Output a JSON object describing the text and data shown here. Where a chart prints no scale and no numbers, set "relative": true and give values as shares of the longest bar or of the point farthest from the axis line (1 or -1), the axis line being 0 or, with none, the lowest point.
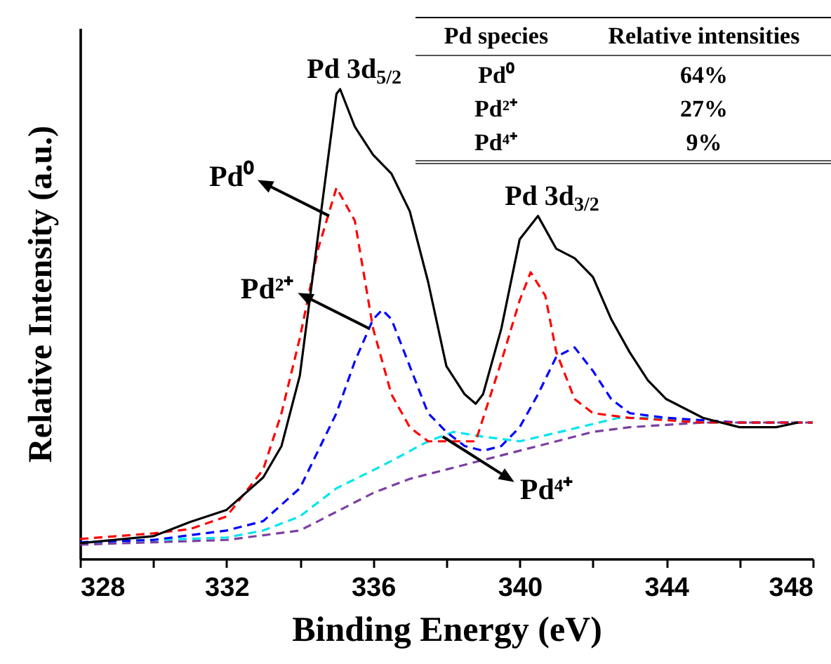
{
  "chart_data": {
    "type": "line",
    "relative": true,
    "xlabel": "Binding Energy (eV)",
    "ylabel": "Relative Intensity (a.u.)",
    "xlim": [
      328,
      348
    ],
    "xticks": [
      328,
      {
        "value": 330,
        "label": null
      },
      332,
      {
        "value": 334,
        "label": null
      },
      336,
      {
        "value": 338,
        "label": null
      },
      340,
      {
        "value": 342,
        "label": null
      },
      344,
      {
        "value": 346,
        "label": null
      },
      348
    ],
    "series": [
      {
        "color": "#7b3fa0",
        "line_style": "dashed",
        "x": [
          328,
          330,
          332,
          333,
          334,
          335,
          336,
          337,
          338,
          339,
          340,
          341,
          342,
          343,
          344,
          345,
          346,
          347,
          348
        ],
        "values": [
          0.03,
          0.035,
          0.04,
          0.05,
          0.06,
          0.1,
          0.14,
          0.17,
          0.19,
          0.21,
          0.23,
          0.25,
          0.27,
          0.28,
          0.285,
          0.29,
          0.29,
          0.29,
          0.29
        ]
      },
      {
        "color": "#00e5ee",
        "line_style": "dashed",
        "x": [
          328,
          330,
          332,
          333,
          334,
          334.5,
          335,
          336.3,
          337.5,
          338.2,
          339,
          340,
          341.1,
          342.7,
          343.7,
          345,
          346,
          347,
          348
        ],
        "values": [
          0.035,
          0.04,
          0.045,
          0.06,
          0.09,
          0.12,
          0.15,
          0.2,
          0.25,
          0.27,
          0.26,
          0.25,
          0.27,
          0.3,
          0.3,
          0.29,
          0.29,
          0.29,
          0.29
        ]
      },
      {
        "color": "#0000ff",
        "line_style": "dashed",
        "x": [
          328,
          330,
          332,
          333,
          334,
          334.5,
          335,
          335.5,
          336,
          336.25,
          336.5,
          337,
          337.5,
          338,
          338.5,
          339,
          339.5,
          340,
          340.5,
          341,
          341.5,
          342,
          342.5,
          343,
          344,
          346,
          348
        ],
        "values": [
          0.035,
          0.04,
          0.06,
          0.08,
          0.15,
          0.23,
          0.31,
          0.42,
          0.51,
          0.53,
          0.51,
          0.41,
          0.31,
          0.27,
          0.24,
          0.23,
          0.24,
          0.28,
          0.35,
          0.43,
          0.45,
          0.4,
          0.34,
          0.31,
          0.3,
          0.29,
          0.29
        ]
      },
      {
        "color": "#ff0000",
        "line_style": "dashed",
        "x": [
          328,
          330,
          331,
          332,
          333,
          333.5,
          334,
          334.5,
          335,
          335.5,
          336,
          336.5,
          337,
          337.5,
          338,
          338.8,
          339.5,
          340,
          340.3,
          340.7,
          341,
          341.5,
          342,
          343,
          345,
          348
        ],
        "values": [
          0.042,
          0.054,
          0.063,
          0.09,
          0.19,
          0.31,
          0.47,
          0.66,
          0.79,
          0.72,
          0.49,
          0.35,
          0.28,
          0.25,
          0.25,
          0.25,
          0.42,
          0.55,
          0.61,
          0.56,
          0.44,
          0.34,
          0.31,
          0.3,
          0.29,
          0.29
        ]
      },
      {
        "color": "#000000",
        "line_style": "solid",
        "x": [
          328,
          330,
          331,
          332,
          333,
          333.5,
          334,
          334.5,
          335,
          335.1,
          335.5,
          336,
          336.5,
          337,
          337.5,
          338,
          338.5,
          338.8,
          339,
          339.5,
          340,
          340.5,
          341,
          341.5,
          342,
          342.5,
          343,
          343.5,
          344,
          345,
          346,
          347,
          347.6
        ],
        "values": [
          0.033,
          0.048,
          0.078,
          0.104,
          0.173,
          0.24,
          0.39,
          0.69,
          0.99,
          1.0,
          0.92,
          0.86,
          0.82,
          0.74,
          0.59,
          0.41,
          0.35,
          0.33,
          0.35,
          0.49,
          0.68,
          0.73,
          0.66,
          0.64,
          0.6,
          0.51,
          0.44,
          0.38,
          0.34,
          0.3,
          0.28,
          0.28,
          0.29
        ]
      }
    ],
    "annotations": [
      {
        "text": "Pd 3d$_{5/2}$",
        "x": 335.1,
        "y": 1.0
      },
      {
        "text": "Pd 3d$_{3/2}$",
        "x": 340.5,
        "y": 0.73
      },
      {
        "text": "Pd⁰",
        "x": 334.8,
        "y": 0.73
      },
      {
        "text": "Pd²⁺",
        "x": 335.9,
        "y": 0.49
      },
      {
        "text": "Pd⁴⁺",
        "x": 337.9,
        "y": 0.26
      },
      "Pd species",
      "Relative intensities",
      "Pd⁰",
      "64%",
      "Pd²⁺",
      "27%",
      "Pd⁴⁺",
      "9%"
    ]
  }
}
